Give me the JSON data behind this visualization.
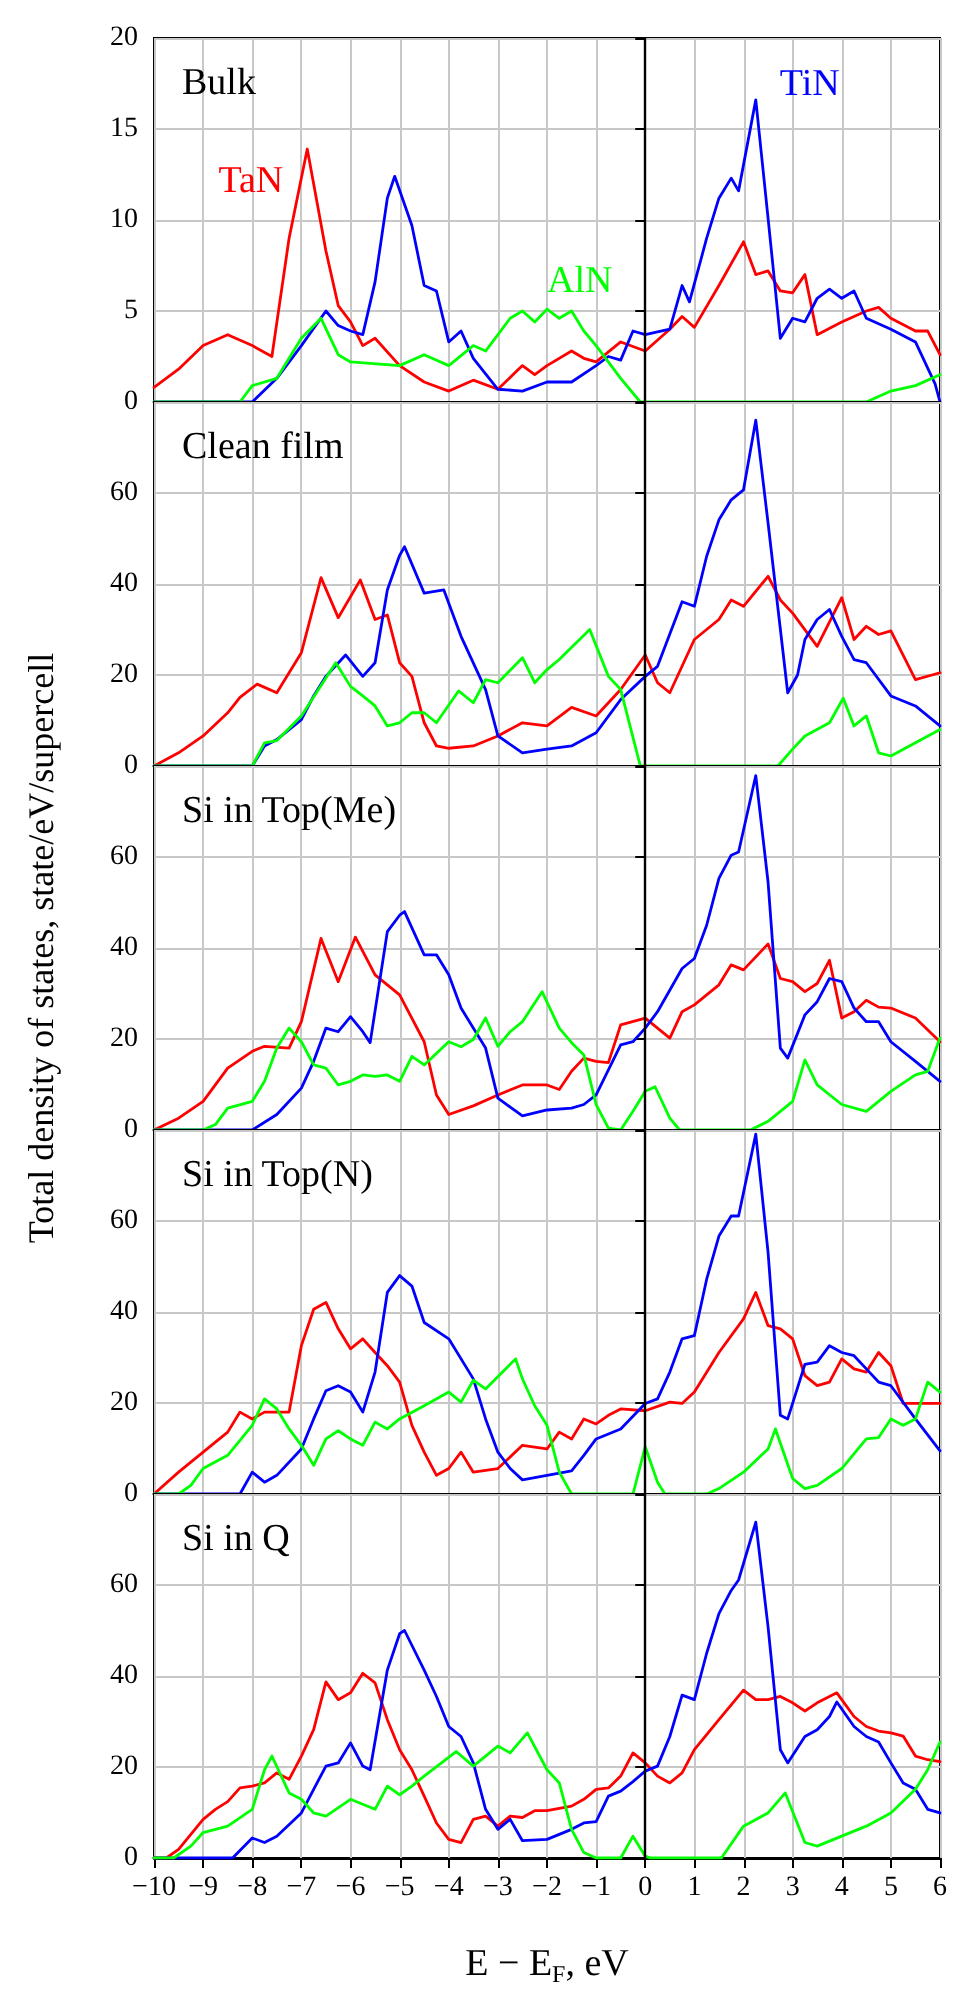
{
  "chart_data": [
    {
      "type": "line",
      "title": "Bulk",
      "xlim": [
        -10,
        6
      ],
      "xticks": [
        -10,
        -9,
        -8,
        -7,
        -6,
        -5,
        -4,
        -3,
        -2,
        -1,
        0,
        1,
        2,
        3,
        4,
        5,
        6
      ],
      "ylim": [
        0,
        20
      ],
      "yticks": [
        0,
        5,
        10,
        15,
        20
      ],
      "grid": true,
      "tick_labels": "y",
      "ref_lines": [
        {
          "axis": "x",
          "value": 0
        }
      ],
      "series": [
        {
          "name": "TaN",
          "color": "#ff0000",
          "x": [
            -10,
            -9.5,
            -9,
            -8.5,
            -8,
            -7.6,
            -7.25,
            -6.88,
            -6.5,
            -6.25,
            -6,
            -5.75,
            -5.5,
            -5,
            -4.5,
            -4,
            -3.5,
            -3,
            -2.5,
            -2.25,
            -2,
            -1.5,
            -1.25,
            -1,
            -0.5,
            0,
            0.5,
            0.75,
            1,
            1.5,
            2,
            2.25,
            2.5,
            2.75,
            3,
            3.25,
            3.5,
            4,
            4.5,
            4.75,
            5,
            5.5,
            5.75,
            6
          ],
          "values": [
            0.8,
            1.8,
            3.1,
            3.7,
            3.1,
            2.5,
            9,
            13.9,
            8.3,
            5.3,
            4.4,
            3.1,
            3.5,
            2.0,
            1.1,
            0.6,
            1.2,
            0.7,
            2.0,
            1.5,
            2.0,
            2.8,
            2.4,
            2.2,
            3.3,
            2.8,
            4.0,
            4.7,
            4.1,
            6.4,
            8.8,
            7.0,
            7.2,
            6.1,
            6.0,
            7.0,
            3.7,
            4.4,
            5.0,
            5.2,
            4.6,
            3.9,
            3.9,
            2.6
          ]
        },
        {
          "name": "TiN",
          "color": "#0000ff",
          "x": [
            -10,
            -8,
            -7.5,
            -7,
            -6.5,
            -6.25,
            -6,
            -5.75,
            -5.5,
            -5.25,
            -5.1,
            -4.75,
            -4.5,
            -4.25,
            -4,
            -3.75,
            -3.5,
            -3,
            -2.5,
            -2,
            -1.5,
            -1,
            -0.75,
            -0.5,
            -0.25,
            0,
            0.5,
            0.75,
            0.9,
            1.25,
            1.5,
            1.75,
            1.9,
            2.25,
            2.5,
            2.75,
            3,
            3.25,
            3.5,
            3.75,
            4,
            4.25,
            4.5,
            5,
            5.5,
            5.9,
            6
          ],
          "values": [
            0,
            0,
            1.3,
            3.1,
            5.0,
            4.2,
            3.9,
            3.7,
            6.6,
            11.2,
            12.4,
            9.7,
            6.4,
            6.1,
            3.3,
            3.9,
            2.4,
            0.7,
            0.6,
            1.1,
            1.1,
            2.0,
            2.5,
            2.3,
            3.9,
            3.7,
            4.0,
            6.4,
            5.5,
            9.0,
            11.2,
            12.3,
            11.6,
            16.6,
            10.1,
            3.5,
            4.6,
            4.4,
            5.7,
            6.2,
            5.7,
            6.1,
            4.6,
            4.0,
            3.3,
            1.0,
            0
          ]
        },
        {
          "name": "AlN",
          "color": "#00ff00",
          "x": [
            -10,
            -8.25,
            -8,
            -7.5,
            -7,
            -6.6,
            -6.25,
            -6,
            -5,
            -4.5,
            -4,
            -3.5,
            -3.25,
            -2.75,
            -2.5,
            -2.25,
            -2,
            -1.75,
            -1.5,
            -1.25,
            -1,
            -0.5,
            -0.1,
            4.5,
            5,
            5.5,
            6
          ],
          "values": [
            0,
            0,
            0.9,
            1.3,
            3.5,
            4.6,
            2.6,
            2.2,
            2.0,
            2.6,
            2.0,
            3.1,
            2.8,
            4.6,
            5.0,
            4.4,
            5.1,
            4.6,
            5.0,
            3.9,
            3.1,
            1.3,
            0,
            0,
            0.6,
            0.9,
            1.5
          ]
        }
      ]
    },
    {
      "type": "line",
      "title": "Clean film",
      "xlim": [
        -10,
        6
      ],
      "xticks": [
        -10,
        -9,
        -8,
        -7,
        -6,
        -5,
        -4,
        -3,
        -2,
        -1,
        0,
        1,
        2,
        3,
        4,
        5,
        6
      ],
      "ylim": [
        0,
        80
      ],
      "yticks": [
        0,
        20,
        40,
        60
      ],
      "grid": true,
      "tick_labels": "y",
      "ref_lines": [
        {
          "axis": "x",
          "value": 0
        }
      ],
      "series": [
        {
          "color": "#ff0000",
          "x": [
            -10,
            -9.5,
            -9,
            -8.5,
            -8.25,
            -7.9,
            -7.5,
            -7,
            -6.6,
            -6.25,
            -5.8,
            -5.5,
            -5.25,
            -5,
            -4.75,
            -4.5,
            -4.25,
            -4,
            -3.5,
            -3,
            -2.5,
            -2,
            -1.5,
            -1,
            -0.5,
            0,
            0.25,
            0.5,
            1,
            1.5,
            1.75,
            2,
            2.5,
            2.75,
            3,
            3.5,
            4,
            4.25,
            4.5,
            4.75,
            5,
            5.5,
            6
          ],
          "values": [
            0,
            2.9,
            6.6,
            11.7,
            15.1,
            18,
            16.1,
            24.9,
            41.4,
            32.6,
            40.9,
            32.2,
            33.2,
            22.7,
            19.7,
            9.5,
            4.4,
            3.9,
            4.4,
            6.6,
            9.5,
            8.8,
            12.9,
            11,
            16.8,
            24.4,
            18.3,
            16.1,
            27.8,
            32.2,
            36.5,
            35.1,
            41.7,
            36.5,
            33.6,
            26.3,
            37.0,
            27.8,
            30.7,
            28.9,
            29.7,
            19.0,
            20.5
          ]
        },
        {
          "color": "#0000ff",
          "x": [
            -10,
            -8,
            -7.75,
            -7.5,
            -7,
            -6.75,
            -6.5,
            -6.1,
            -5.75,
            -5.5,
            -5.25,
            -5,
            -4.9,
            -4.5,
            -4.1,
            -3.75,
            -3.25,
            -3,
            -2.5,
            -2,
            -1.5,
            -1,
            -0.5,
            0,
            0.25,
            0.75,
            1,
            1.25,
            1.5,
            1.75,
            2,
            2.25,
            2.5,
            2.9,
            3.1,
            3.25,
            3.5,
            3.75,
            4,
            4.25,
            4.5,
            5,
            5.5,
            6
          ],
          "values": [
            0,
            0,
            4.4,
            5.8,
            10.2,
            15.4,
            19.7,
            24.4,
            19.7,
            22.7,
            38.7,
            46.3,
            48.2,
            38.0,
            38.7,
            28.5,
            16.8,
            6.6,
            2.9,
            3.7,
            4.4,
            7.3,
            14.6,
            19.7,
            21.9,
            36.1,
            35.1,
            46.1,
            54.1,
            58.5,
            60.7,
            76.0,
            53.4,
            16.1,
            20,
            27.8,
            32.2,
            34.4,
            28.5,
            23.4,
            22.7,
            15.4,
            13.2,
            8.8
          ]
        },
        {
          "color": "#00ff00",
          "x": [
            -10,
            -8,
            -7.75,
            -7.5,
            -7,
            -6.3,
            -6,
            -5.75,
            -5.5,
            -5.25,
            -5,
            -4.75,
            -4.5,
            -4.25,
            -3.8,
            -3.5,
            -3.25,
            -3,
            -2.5,
            -2.25,
            -2,
            -1.75,
            -1.13,
            -0.75,
            -0.5,
            -0.1,
            2.7,
            3,
            3.25,
            3.75,
            4.03,
            4.25,
            4.5,
            4.75,
            5,
            5.5,
            6
          ],
          "values": [
            0,
            0,
            5.1,
            5.6,
            11,
            22.7,
            17.5,
            15.4,
            13.2,
            8.8,
            9.5,
            11.7,
            11.7,
            9.5,
            16.5,
            13.9,
            19,
            18.3,
            23.8,
            18.3,
            21.2,
            23.4,
            30,
            19.7,
            16.8,
            0,
            0,
            3.7,
            6.6,
            9.5,
            14.9,
            8.8,
            11,
            2.9,
            2.2,
            5.1,
            8.0
          ]
        }
      ]
    },
    {
      "type": "line",
      "title": "Si in Top(Me)",
      "ylabel": "Total density of states, state/eV/supercell",
      "xlim": [
        -10,
        6
      ],
      "xticks": [
        -10,
        -9,
        -8,
        -7,
        -6,
        -5,
        -4,
        -3,
        -2,
        -1,
        0,
        1,
        2,
        3,
        4,
        5,
        6
      ],
      "ylim": [
        0,
        80
      ],
      "yticks": [
        0,
        20,
        40,
        60
      ],
      "grid": true,
      "tick_labels": "y",
      "ref_lines": [
        {
          "axis": "x",
          "value": 0
        }
      ],
      "series": [
        {
          "color": "#ff0000",
          "x": [
            -10,
            -9.5,
            -9,
            -8.5,
            -8,
            -7.75,
            -7.25,
            -7,
            -6.6,
            -6.25,
            -5.9,
            -5.5,
            -5,
            -4.5,
            -4.25,
            -4,
            -3.5,
            -3,
            -2.5,
            -2,
            -1.75,
            -1.5,
            -1.25,
            -1,
            -0.75,
            -0.5,
            0,
            0.5,
            0.75,
            1,
            1.5,
            1.75,
            2,
            2.5,
            2.75,
            3,
            3.25,
            3.5,
            3.75,
            4,
            4.25,
            4.5,
            4.75,
            5,
            5.5,
            6
          ],
          "values": [
            0,
            2.6,
            6.3,
            13.6,
            17.3,
            18.4,
            18,
            23.8,
            42.1,
            32.6,
            42.4,
            34.1,
            29.7,
            19.4,
            7.7,
            3.4,
            5.3,
            7.7,
            9.9,
            9.9,
            8.9,
            12.9,
            15.8,
            15.1,
            14.8,
            23.1,
            24.6,
            20.2,
            26,
            27.5,
            31.9,
            36.3,
            35.2,
            40.9,
            33.3,
            32.6,
            30.4,
            32.2,
            37.3,
            24.6,
            26,
            28.5,
            27,
            26.8,
            24.6,
            19.4
          ]
        },
        {
          "color": "#0000ff",
          "x": [
            -10,
            -8,
            -7.5,
            -7,
            -6.75,
            -6.5,
            -6.25,
            -6,
            -5.75,
            -5.6,
            -5.25,
            -5,
            -4.9,
            -4.5,
            -4.25,
            -4,
            -3.75,
            -3.25,
            -3,
            -2.5,
            -2,
            -1.5,
            -1.25,
            -1,
            -0.5,
            -0.25,
            0,
            0.25,
            0.75,
            1,
            1.25,
            1.5,
            1.75,
            1.9,
            2.25,
            2.5,
            2.75,
            2.9,
            3.25,
            3.5,
            3.75,
            4,
            4.25,
            4.5,
            4.75,
            5,
            5.5,
            6
          ],
          "values": [
            0,
            0,
            3.4,
            9.2,
            15.1,
            22.4,
            21.6,
            24.9,
            21.6,
            19.2,
            43.6,
            47.2,
            48,
            38.5,
            38.5,
            34.1,
            26.8,
            18,
            7,
            3.1,
            4.4,
            4.8,
            5.6,
            7.7,
            18.7,
            19.4,
            22.4,
            26,
            35.5,
            37.7,
            45,
            55.3,
            60.4,
            61.1,
            77.9,
            54.5,
            18,
            15.8,
            25.3,
            28.2,
            33.3,
            32.6,
            26.8,
            23.8,
            23.8,
            19.4,
            15.1,
            10.7
          ]
        },
        {
          "color": "#00ff00",
          "x": [
            -10,
            -9,
            -8.75,
            -8.5,
            -8,
            -7.75,
            -7.5,
            -7.25,
            -7,
            -6.75,
            -6.5,
            -6.25,
            -6,
            -5.75,
            -5.5,
            -5.25,
            -5,
            -4.75,
            -4.5,
            -4,
            -3.75,
            -3.5,
            -3.25,
            -3,
            -2.75,
            -2.5,
            -2.1,
            -1.75,
            -1.5,
            -1.25,
            -1,
            -0.75,
            -0.5,
            -0.25,
            0,
            0.2,
            0.5,
            0.7,
            2.14,
            2.5,
            3,
            3.25,
            3.5,
            4,
            4.5,
            5,
            5.5,
            5.75,
            6
          ],
          "values": [
            0,
            0,
            1.2,
            4.8,
            6.3,
            10.7,
            18,
            22.4,
            19.4,
            14.3,
            13.6,
            9.9,
            10.7,
            12.1,
            11.8,
            12.1,
            10.7,
            16.2,
            14.3,
            19.4,
            18.3,
            19.9,
            24.6,
            18.4,
            21.6,
            23.8,
            30.4,
            22.4,
            19.2,
            16.5,
            5.6,
            0.4,
            0,
            4.1,
            8.5,
            9.5,
            2.6,
            0,
            0,
            1.9,
            6.3,
            15.4,
            9.9,
            5.6,
            4.1,
            8.5,
            12.1,
            12.9,
            20.2
          ]
        }
      ]
    },
    {
      "type": "line",
      "title": "Si in Top(N)",
      "xlim": [
        -10,
        6
      ],
      "xticks": [
        -10,
        -9,
        -8,
        -7,
        -6,
        -5,
        -4,
        -3,
        -2,
        -1,
        0,
        1,
        2,
        3,
        4,
        5,
        6
      ],
      "ylim": [
        0,
        80
      ],
      "yticks": [
        0,
        20,
        40,
        60
      ],
      "grid": true,
      "tick_labels": "y",
      "ref_lines": [
        {
          "axis": "x",
          "value": 0
        }
      ],
      "series": [
        {
          "color": "#ff0000",
          "x": [
            -10,
            -9.5,
            -9,
            -8.5,
            -8.25,
            -8,
            -7.75,
            -7.25,
            -7,
            -6.75,
            -6.5,
            -6.25,
            -6,
            -5.75,
            -5.5,
            -5.25,
            -5,
            -4.75,
            -4.5,
            -4.25,
            -4,
            -3.75,
            -3.5,
            -3,
            -2.5,
            -2,
            -1.75,
            -1.5,
            -1.25,
            -1,
            -0.75,
            -0.5,
            0,
            0.5,
            0.75,
            1,
            1.5,
            2,
            2.25,
            2.5,
            2.75,
            3,
            3.25,
            3.5,
            3.75,
            4,
            4.25,
            4.5,
            4.75,
            5,
            5.25,
            5.5,
            6
          ],
          "values": [
            0,
            4.8,
            9.2,
            13.6,
            18,
            16.5,
            18,
            18,
            32.6,
            40.6,
            42.1,
            36.3,
            31.9,
            34.1,
            31.1,
            28.2,
            24.6,
            15.1,
            9.2,
            4.1,
            5.6,
            9.2,
            4.8,
            5.6,
            10.7,
            9.9,
            13.6,
            12.1,
            16.5,
            15.4,
            17.3,
            18.7,
            18.3,
            20.2,
            19.9,
            22.4,
            31.1,
            38.5,
            44.3,
            37,
            36.3,
            34.1,
            26,
            23.8,
            24.6,
            29.7,
            27.5,
            26.8,
            31.1,
            28.2,
            19.9,
            19.9,
            19.9
          ]
        },
        {
          "color": "#0000ff",
          "x": [
            -10,
            -8.25,
            -8,
            -7.75,
            -7.5,
            -7,
            -6.75,
            -6.5,
            -6.25,
            -6,
            -5.75,
            -5.5,
            -5.25,
            -5,
            -4.75,
            -4.5,
            -4,
            -3.5,
            -3.25,
            -3,
            -2.75,
            -2.5,
            -2,
            -1.5,
            -1.25,
            -1,
            -0.5,
            0,
            0.25,
            0.5,
            0.75,
            1,
            1.25,
            1.5,
            1.75,
            1.9,
            2.25,
            2.5,
            2.75,
            2.9,
            3.25,
            3.5,
            3.75,
            4,
            4.25,
            4.5,
            4.75,
            5,
            5.5,
            6
          ],
          "values": [
            0,
            0,
            4.8,
            2.6,
            4.1,
            9.9,
            16.5,
            22.7,
            23.8,
            22.4,
            18,
            26.8,
            44.3,
            48,
            45.7,
            37.7,
            34.1,
            25.3,
            16.5,
            9.2,
            5.6,
            3.1,
            4.1,
            5.1,
            8.5,
            12.1,
            14.3,
            19.9,
            20.9,
            26.8,
            34.1,
            34.8,
            47.2,
            56.7,
            61.1,
            61.1,
            79.1,
            53.1,
            17.3,
            16.5,
            28.5,
            29,
            32.6,
            31.1,
            30.4,
            27.5,
            24.6,
            23.8,
            16.5,
            9.5
          ]
        },
        {
          "color": "#00ff00",
          "x": [
            -10,
            -9.5,
            -9.25,
            -9,
            -8.5,
            -8,
            -7.75,
            -7.5,
            -7.25,
            -7,
            -6.75,
            -6.5,
            -6.25,
            -6,
            -5.75,
            -5.5,
            -5.25,
            -5,
            -4.5,
            -4,
            -3.75,
            -3.5,
            -3.25,
            -2.64,
            -2.5,
            -2.25,
            -2,
            -1.75,
            -1.5,
            -0.25,
            0,
            0.25,
            0.4,
            1.25,
            1.5,
            2,
            2.5,
            2.65,
            3,
            3.25,
            3.5,
            4,
            4.5,
            4.75,
            5,
            5.25,
            5.5,
            5.75,
            6
          ],
          "values": [
            0,
            0,
            1.9,
            5.6,
            8.5,
            15.1,
            20.9,
            18.7,
            14.3,
            10.7,
            6.3,
            12.1,
            13.9,
            12.1,
            10.7,
            15.8,
            14.3,
            16.5,
            19.4,
            22.4,
            20.2,
            25,
            23.1,
            29.7,
            25.3,
            19.4,
            15.1,
            4.8,
            0,
            0,
            10.4,
            2.6,
            0,
            0,
            1.2,
            4.8,
            9.9,
            14.3,
            3.4,
            1.2,
            1.9,
            5.6,
            12.1,
            12.4,
            16.5,
            15.1,
            16.5,
            24.6,
            22.4
          ]
        }
      ]
    },
    {
      "type": "line",
      "title": "Si in Q",
      "xlabel": "E − E$_{F}$, eV",
      "xlim": [
        -10,
        6
      ],
      "xticks": [
        -10,
        -9,
        -8,
        -7,
        -6,
        -5,
        -4,
        -3,
        -2,
        -1,
        0,
        1,
        2,
        3,
        4,
        5,
        6
      ],
      "ylim": [
        0,
        80
      ],
      "yticks": [
        0,
        20,
        40,
        60
      ],
      "grid": true,
      "ref_lines": [
        {
          "axis": "x",
          "value": 0
        }
      ],
      "series": [
        {
          "color": "#ff0000",
          "x": [
            -10,
            -9.75,
            -9.5,
            -9,
            -8.75,
            -8.5,
            -8.25,
            -8,
            -7.75,
            -7.5,
            -7.25,
            -7,
            -6.75,
            -6.5,
            -6.25,
            -6,
            -5.75,
            -5.5,
            -5.25,
            -5,
            -4.75,
            -4.5,
            -4.25,
            -4,
            -3.75,
            -3.5,
            -3.25,
            -3,
            -2.75,
            -2.5,
            -2.25,
            -2,
            -1.5,
            -1.25,
            -1,
            -0.75,
            -0.5,
            -0.25,
            0,
            0.25,
            0.5,
            0.75,
            1,
            1.5,
            2,
            2.25,
            2.5,
            2.75,
            3,
            3.25,
            3.5,
            3.9,
            4.25,
            4.5,
            4.75,
            5,
            5.25,
            5.5,
            5.75,
            6
          ],
          "values": [
            0,
            0,
            1.9,
            8.5,
            10.7,
            12.4,
            15.4,
            15.8,
            16.5,
            18.7,
            17.3,
            22.4,
            28.2,
            38.7,
            34.8,
            36.3,
            40.6,
            38.5,
            30.4,
            23.8,
            19.4,
            13.6,
            7.7,
            4.1,
            3.4,
            8.5,
            9.2,
            7,
            9.2,
            8.9,
            10.4,
            10.4,
            11.4,
            12.9,
            15.1,
            15.4,
            18,
            23.1,
            20.9,
            18,
            16.5,
            18.7,
            23.8,
            30.4,
            36.9,
            34.8,
            34.8,
            35.5,
            34.1,
            32.3,
            34.1,
            36.3,
            31.1,
            28.9,
            27.9,
            27.5,
            26.8,
            22.4,
            21.6,
            21.2
          ]
        },
        {
          "color": "#0000ff",
          "x": [
            -10,
            -8.4,
            -8,
            -7.75,
            -7.5,
            -7,
            -6.75,
            -6.5,
            -6.25,
            -6,
            -5.75,
            -5.6,
            -5.25,
            -5,
            -4.9,
            -4.5,
            -4.25,
            -4,
            -3.75,
            -3.5,
            -3.25,
            -3,
            -2.75,
            -2.5,
            -2,
            -1.5,
            -1.25,
            -1,
            -0.75,
            -0.5,
            -0.25,
            0,
            0.25,
            0.5,
            0.75,
            1,
            1.25,
            1.5,
            1.75,
            1.9,
            2.25,
            2.5,
            2.75,
            2.9,
            3.25,
            3.5,
            3.75,
            3.9,
            4.25,
            4.5,
            4.75,
            5,
            5.25,
            5.5,
            5.75,
            6
          ],
          "values": [
            0,
            0,
            4.4,
            3.4,
            4.8,
            9.9,
            15.1,
            20.2,
            20.9,
            25.3,
            20.2,
            19.4,
            41.3,
            49.3,
            50,
            41.3,
            35.5,
            28.9,
            26.7,
            20.9,
            10.7,
            6.3,
            8.5,
            3.8,
            4.1,
            6.3,
            7.7,
            8,
            13.6,
            14.7,
            16.8,
            19.1,
            20.2,
            26.7,
            35.8,
            34.8,
            45,
            53.7,
            58.8,
            61.1,
            73.8,
            50.8,
            23.8,
            20.9,
            26.7,
            28.2,
            31.1,
            34.3,
            28.9,
            26.7,
            25.5,
            20.9,
            16.5,
            15.1,
            10.7,
            9.9
          ]
        },
        {
          "color": "#00ff00",
          "x": [
            -10,
            -9.6,
            -9.25,
            -9,
            -8.5,
            -8,
            -7.75,
            -7.6,
            -7.25,
            -7,
            -6.75,
            -6.5,
            -6,
            -5.75,
            -5.5,
            -5.25,
            -5,
            -4.75,
            -4.5,
            -3.85,
            -3.5,
            -3.25,
            -3,
            -2.75,
            -2.4,
            -2,
            -1.75,
            -1.5,
            -1.25,
            -1,
            -0.5,
            -0.25,
            0,
            0.1,
            1.55,
            2,
            2.5,
            2.85,
            3.25,
            3.5,
            4,
            4.5,
            5,
            5.5,
            5.75,
            6
          ],
          "values": [
            0,
            0,
            2.6,
            5.6,
            7,
            10.7,
            19.4,
            22.4,
            14.3,
            12.9,
            9.9,
            9.2,
            12.9,
            11.8,
            10.7,
            15.8,
            13.9,
            15.8,
            18,
            23.4,
            20.2,
            22.4,
            24.6,
            23.1,
            27.5,
            19.4,
            16.5,
            6.3,
            1.2,
            0,
            0,
            4.8,
            0.4,
            0,
            0,
            7,
            9.9,
            14.3,
            3.4,
            2.6,
            4.8,
            7,
            9.9,
            15.1,
            19.4,
            25.5
          ]
        }
      ]
    }
  ]
}
